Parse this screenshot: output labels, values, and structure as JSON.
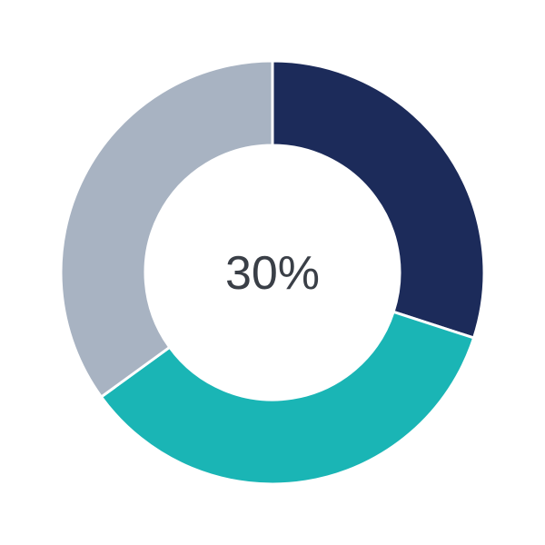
{
  "chart_data": {
    "type": "pie",
    "variant": "donut",
    "center_label": "30%",
    "values": [
      30,
      35,
      35
    ],
    "colors": [
      "#1c2b5a",
      "#1ab5b5",
      "#a8b3c2"
    ],
    "start": "top",
    "direction": "clockwise",
    "legend": "none"
  }
}
